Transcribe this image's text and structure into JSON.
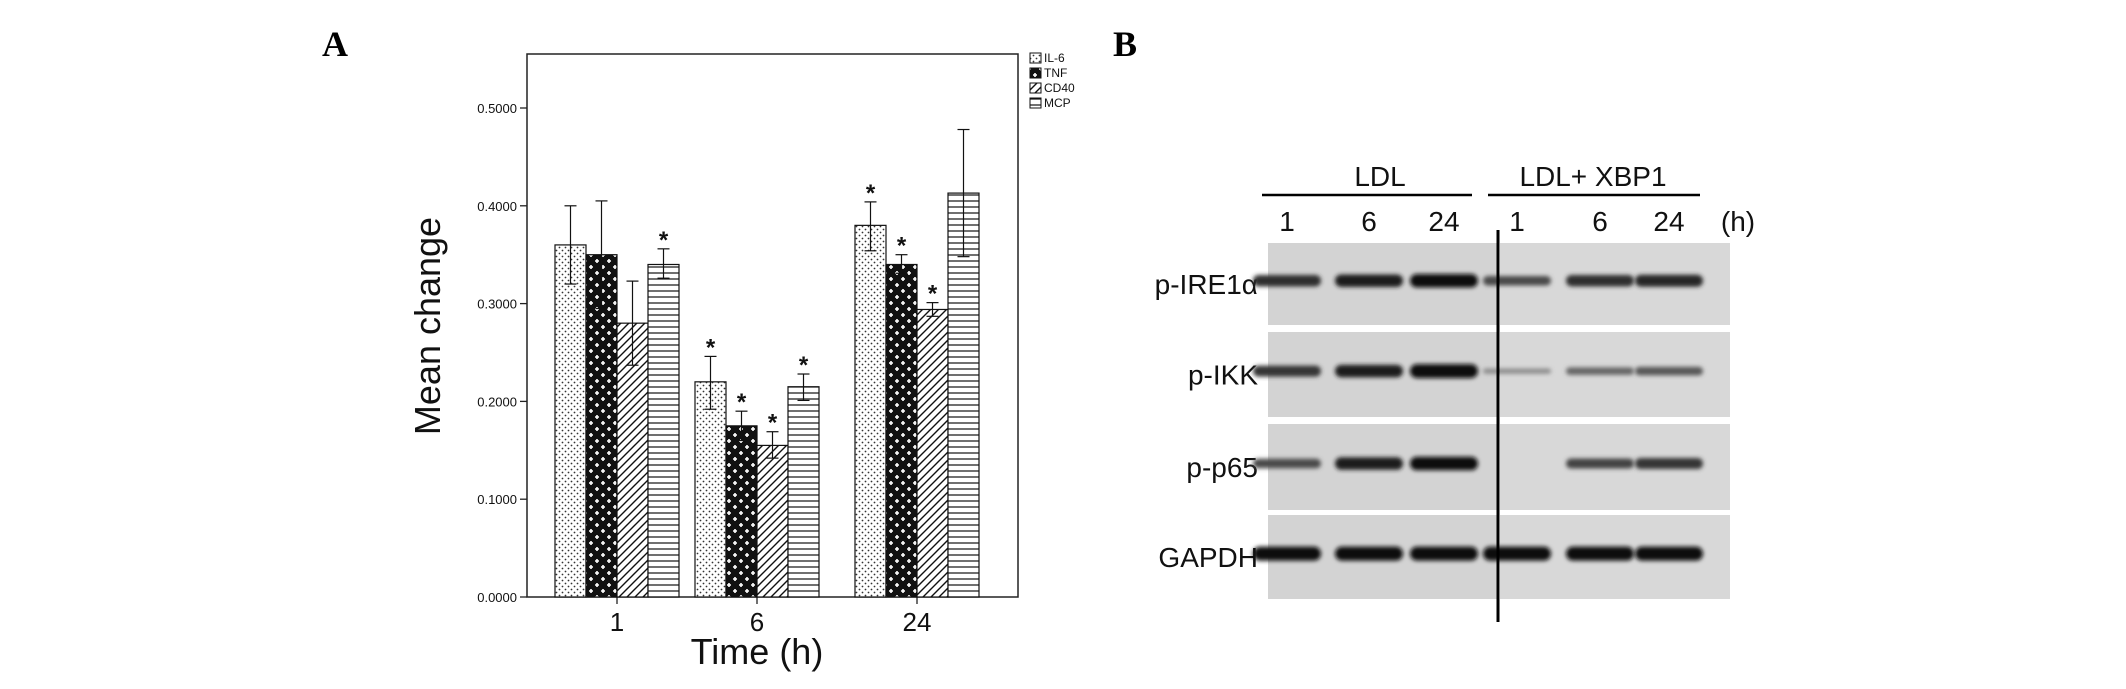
{
  "panels": {
    "a": "A",
    "b": "B"
  },
  "chart_data": {
    "type": "bar",
    "title": "",
    "xlabel": "Time (h)",
    "ylabel": "Mean change",
    "categories": [
      "1",
      "6",
      "24"
    ],
    "ylim": [
      0,
      0.55
    ],
    "yticks": [
      0.0,
      0.1,
      0.2,
      0.3,
      0.4,
      0.5
    ],
    "ytick_labels": [
      "0.0000",
      "0.1000",
      "0.2000",
      "0.3000",
      "0.4000",
      "0.5000"
    ],
    "series": [
      {
        "name": "IL-6",
        "pattern": "dots",
        "values": [
          0.36,
          0.22,
          0.38
        ],
        "err_low": [
          0.32,
          0.192,
          0.354
        ],
        "err_high": [
          0.4,
          0.246,
          0.404
        ],
        "sig": [
          false,
          true,
          true
        ]
      },
      {
        "name": "TNF",
        "pattern": "cross",
        "values": [
          0.35,
          0.175,
          0.34
        ],
        "err_low": [
          0.295,
          0.16,
          0.331
        ],
        "err_high": [
          0.405,
          0.19,
          0.35
        ],
        "sig": [
          false,
          true,
          true
        ]
      },
      {
        "name": "CD40",
        "pattern": "diag",
        "values": [
          0.28,
          0.155,
          0.294
        ],
        "err_low": [
          0.237,
          0.142,
          0.287
        ],
        "err_high": [
          0.323,
          0.169,
          0.301
        ],
        "sig": [
          false,
          true,
          true
        ]
      },
      {
        "name": "MCP",
        "pattern": "hlines",
        "values": [
          0.34,
          0.215,
          0.413
        ],
        "err_low": [
          0.326,
          0.201,
          0.348
        ],
        "err_high": [
          0.356,
          0.228,
          0.478
        ],
        "sig": [
          true,
          true,
          false
        ]
      }
    ],
    "sig_marker": "*",
    "legend_position": "top-right",
    "grid": false
  },
  "blot": {
    "group_labels": [
      "LDL",
      "LDL+ XBP1"
    ],
    "time_labels": [
      "1",
      "6",
      "24",
      "1",
      "6",
      "24"
    ],
    "unit_label": "(h)",
    "rows": [
      {
        "label": "p-IRE1α",
        "intensity": [
          0.75,
          0.85,
          0.95,
          0.55,
          0.75,
          0.8
        ]
      },
      {
        "label": "p-IKK",
        "intensity": [
          0.7,
          0.85,
          1.0,
          0.1,
          0.35,
          0.45
        ]
      },
      {
        "label": "p-p65",
        "intensity": [
          0.55,
          0.85,
          0.95,
          0.0,
          0.6,
          0.7
        ]
      },
      {
        "label": "GAPDH",
        "intensity": [
          1.0,
          1.0,
          1.0,
          1.0,
          1.0,
          1.0
        ]
      }
    ]
  }
}
